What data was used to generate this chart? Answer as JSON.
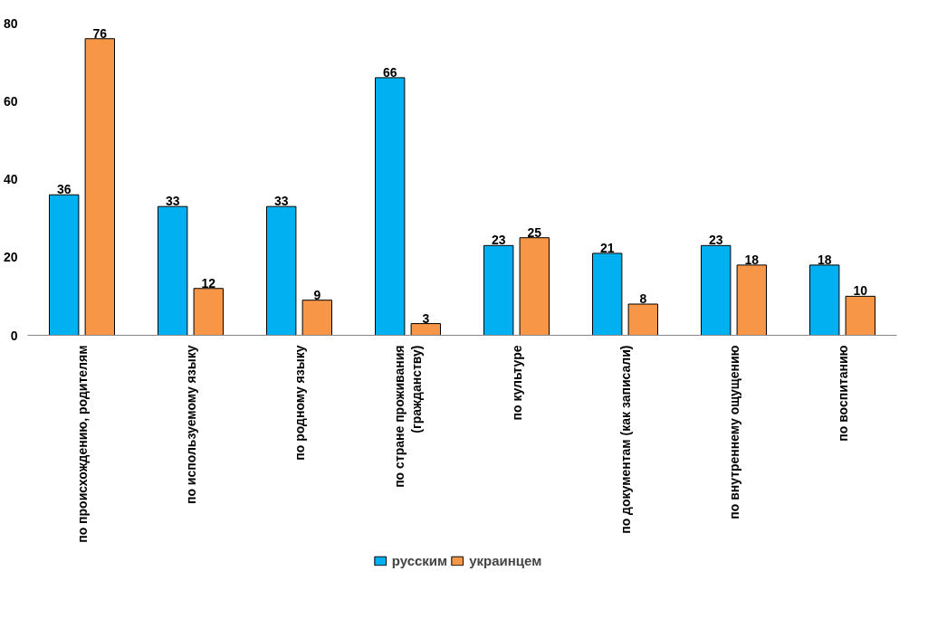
{
  "chart_data": {
    "type": "bar",
    "categories": [
      "по происхождению, родителям",
      "по используемому языку",
      "по родному языку",
      "по стране проживания\n(гражданству)",
      "по культуре",
      "по документам (как записали)",
      "по внутреннему ощущению",
      "по воспитанию"
    ],
    "series": [
      {
        "name": "русским",
        "color": "#00b0f0",
        "values": [
          36,
          33,
          33,
          66,
          23,
          21,
          23,
          18
        ]
      },
      {
        "name": "украинцем",
        "color": "#f79646",
        "values": [
          76,
          12,
          9,
          3,
          25,
          8,
          18,
          10
        ]
      }
    ],
    "ylim": [
      0,
      80
    ],
    "yticks": [
      0,
      20,
      40,
      60,
      80
    ],
    "grid": false,
    "legend": "bottom",
    "data_labels": true
  }
}
